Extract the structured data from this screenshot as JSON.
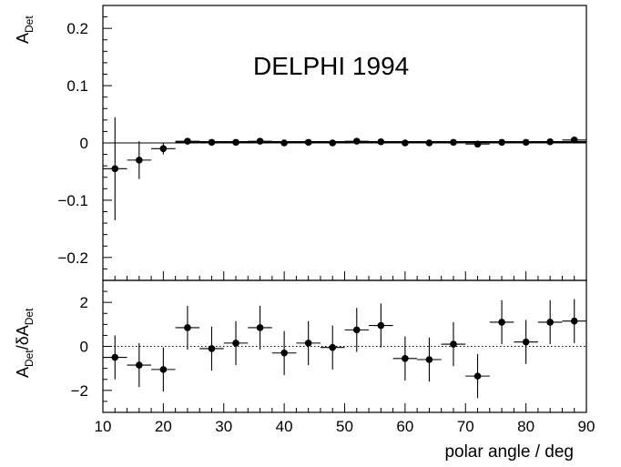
{
  "chart_data": [
    {
      "type": "scatter",
      "panel": "top",
      "title": "",
      "annotation": "DELPHI 1994",
      "ylabel": "A",
      "ylabel_sub": "Det",
      "xlim": [
        10,
        90
      ],
      "ylim": [
        -0.24,
        0.24
      ],
      "yticks": [
        -0.2,
        -0.1,
        0,
        0.1,
        0.2
      ],
      "ytick_labels": [
        "−0.2",
        "−0.1",
        "0",
        "0.1",
        "0.2"
      ],
      "fit_y": 0.002,
      "x": [
        12,
        16,
        20,
        24,
        28,
        32,
        36,
        40,
        44,
        48,
        52,
        56,
        60,
        64,
        68,
        72,
        76,
        80,
        84,
        88
      ],
      "y": [
        -0.045,
        -0.03,
        -0.01,
        0.003,
        0.001,
        0.001,
        0.003,
        0.0,
        0.001,
        0.0,
        0.003,
        0.002,
        0.0,
        0.0,
        0.001,
        -0.002,
        0.001,
        0.001,
        0.002,
        0.005
      ],
      "yerr": [
        0.09,
        0.033,
        0.01,
        0.003,
        0.003,
        0.003,
        0.003,
        0.003,
        0.003,
        0.003,
        0.003,
        0.003,
        0.003,
        0.003,
        0.003,
        0.003,
        0.003,
        0.003,
        0.003,
        0.003
      ],
      "xerr": 2
    },
    {
      "type": "scatter",
      "panel": "bottom",
      "xlabel": "polar angle / deg",
      "ylabel_num": "A",
      "ylabel_num_sub": "Det",
      "ylabel_den": "δA",
      "ylabel_den_sub": "Det",
      "xlim": [
        10,
        90
      ],
      "ylim": [
        -3,
        3
      ],
      "yticks": [
        -2,
        0,
        2
      ],
      "ytick_labels": [
        "−2",
        "0",
        "2"
      ],
      "xticks": [
        10,
        20,
        30,
        40,
        50,
        60,
        70,
        80,
        90
      ],
      "xtick_labels": [
        "10",
        "20",
        "30",
        "40",
        "50",
        "60",
        "70",
        "80",
        "90"
      ],
      "x": [
        12,
        16,
        20,
        24,
        28,
        32,
        36,
        40,
        44,
        48,
        52,
        56,
        60,
        64,
        68,
        72,
        76,
        80,
        84,
        88
      ],
      "y": [
        -0.5,
        -0.85,
        -1.05,
        0.85,
        -0.1,
        0.15,
        0.85,
        -0.3,
        0.15,
        -0.05,
        0.75,
        0.95,
        -0.55,
        -0.6,
        0.1,
        -1.35,
        1.1,
        0.2,
        1.1,
        1.15
      ],
      "yerr": 1,
      "xerr": 2
    }
  ]
}
